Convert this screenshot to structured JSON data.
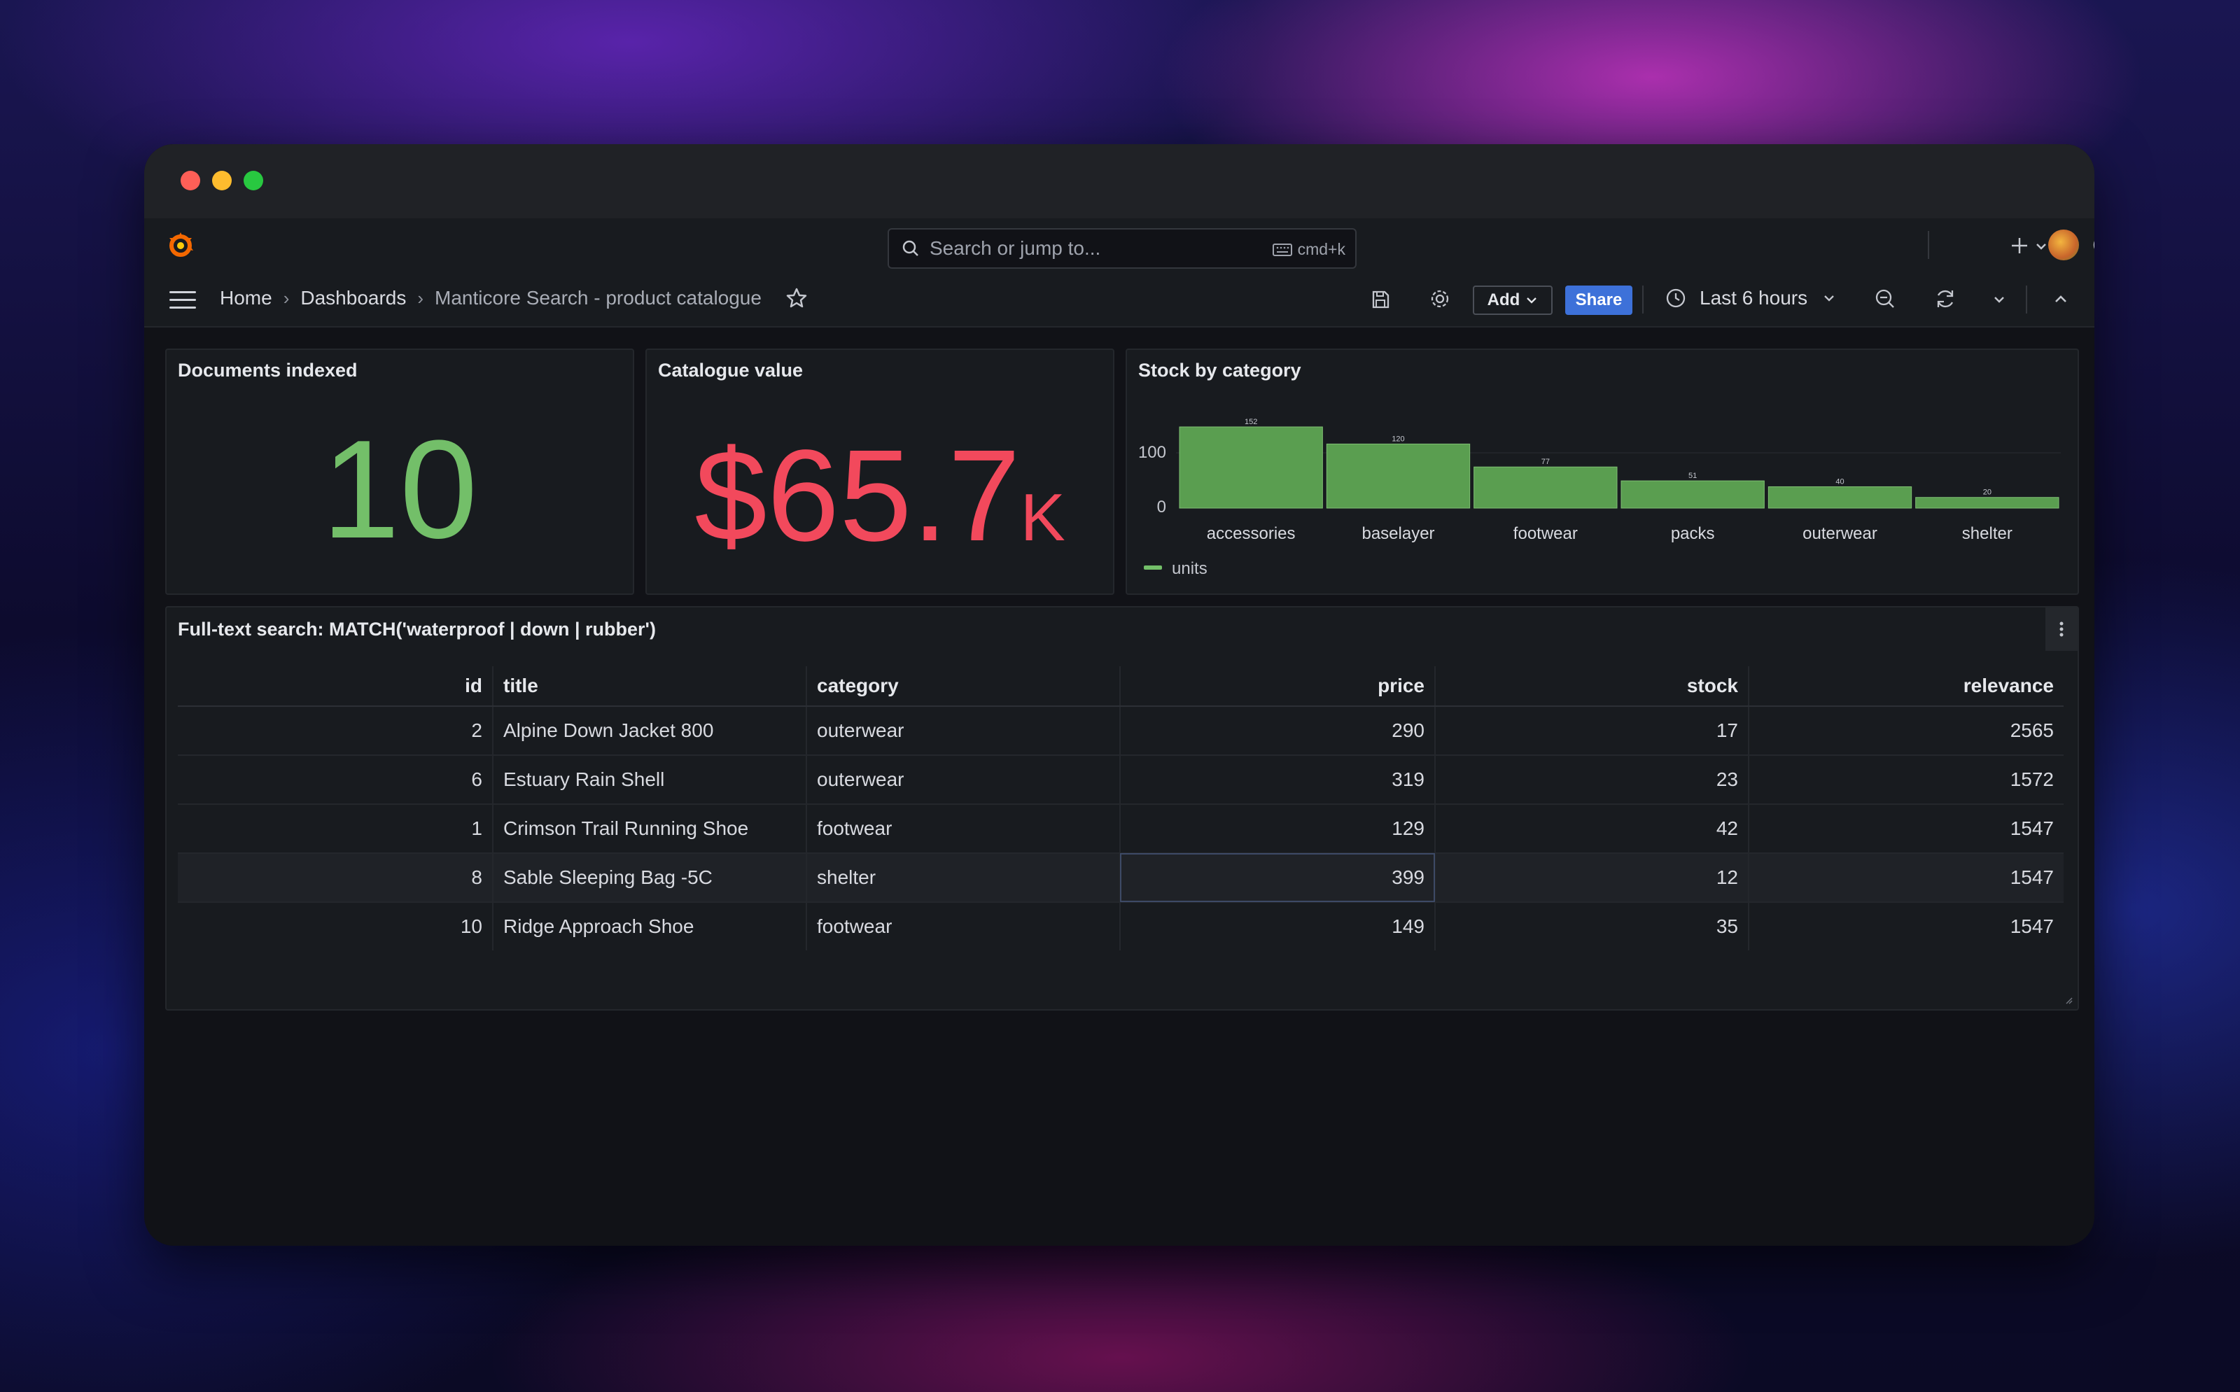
{
  "topbar": {
    "search_placeholder": "Search or jump to...",
    "search_shortcut": "cmd+k",
    "icons": [
      "grafana-logo-icon",
      "search-icon",
      "keyboard-icon",
      "plus-icon",
      "chevron-down-icon",
      "help-icon",
      "rss-icon",
      "avatar"
    ]
  },
  "navbar": {
    "breadcrumb": [
      "Home",
      "Dashboards",
      "Manticore Search - product catalogue"
    ],
    "add_label": "Add",
    "share_label": "Share",
    "time_range": "Last 6 hours"
  },
  "panels": {
    "documents": {
      "title": "Documents indexed",
      "value": "10",
      "color": "#73bf69"
    },
    "catalogue": {
      "title": "Catalogue value",
      "value": "$65.7",
      "unit": "K",
      "color": "#f2495c"
    },
    "stock": {
      "title": "Stock by category",
      "legend": "units"
    },
    "search": {
      "title": "Full-text search: MATCH('waterproof | down | rubber')",
      "columns": [
        "id",
        "title",
        "category",
        "price",
        "stock",
        "relevance"
      ],
      "rows": [
        [
          "2",
          "Alpine Down Jacket 800",
          "outerwear",
          "290",
          "17",
          "2565"
        ],
        [
          "6",
          "Estuary Rain Shell",
          "outerwear",
          "319",
          "23",
          "1572"
        ],
        [
          "1",
          "Crimson Trail Running Shoe",
          "footwear",
          "129",
          "42",
          "1547"
        ],
        [
          "8",
          "Sable Sleeping Bag -5C",
          "shelter",
          "399",
          "12",
          "1547"
        ],
        [
          "10",
          "Ridge Approach Shoe",
          "footwear",
          "149",
          "35",
          "1547"
        ]
      ]
    }
  },
  "chart_data": {
    "type": "bar",
    "title": "Stock by category",
    "categories": [
      "accessories",
      "baselayer",
      "footwear",
      "packs",
      "outerwear",
      "shelter"
    ],
    "series": [
      {
        "name": "units",
        "values": [
          152,
          120,
          77,
          51,
          40,
          20
        ]
      }
    ],
    "yticks": [
      "100",
      "0"
    ],
    "ylim": [
      0,
      152
    ],
    "legend": "bottom-left",
    "color": "#73bf69"
  }
}
